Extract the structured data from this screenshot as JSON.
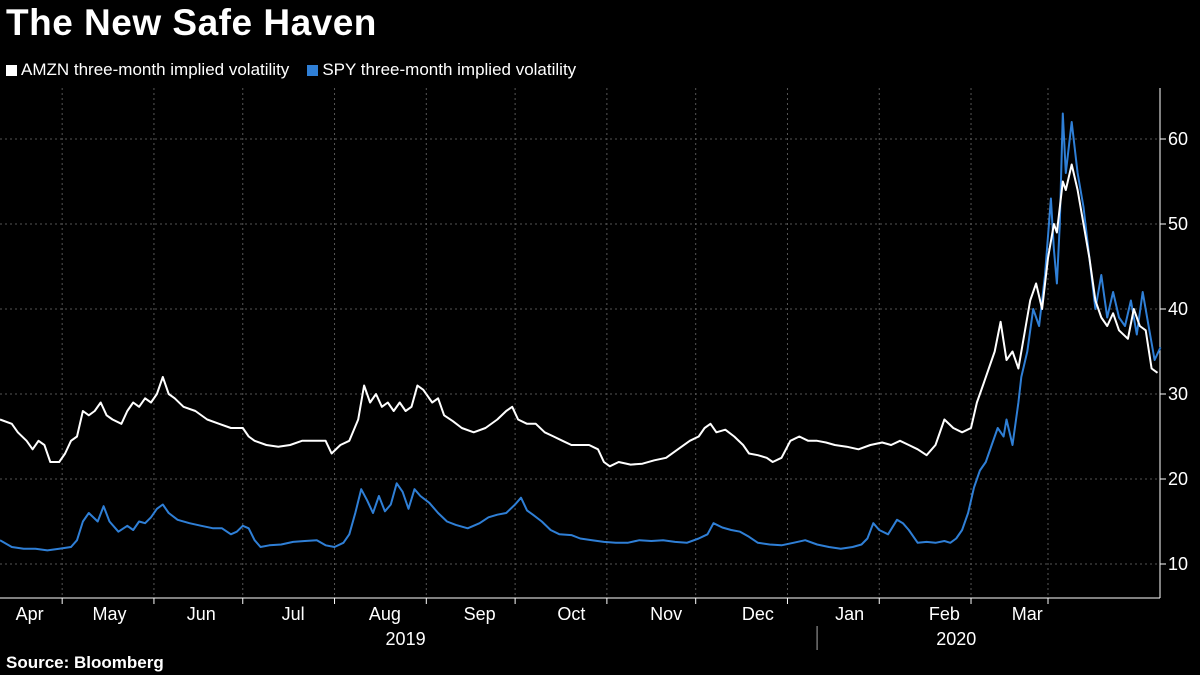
{
  "title": "The New Safe Haven",
  "source": "Source: Bloomberg",
  "colors": {
    "background": "#000000",
    "amzn": "#ffffff",
    "spy": "#2f7fd6",
    "grid": "#555555"
  },
  "chart_data": {
    "type": "line",
    "title": "The New Safe Haven",
    "xlabel": "",
    "ylabel": "",
    "ylim": [
      6,
      66
    ],
    "xlim": [
      0,
      384
    ],
    "y_ticks": [
      "10",
      "20",
      "30",
      "40",
      "50",
      "60"
    ],
    "y_tick_values": [
      10,
      20,
      30,
      40,
      50,
      60
    ],
    "month_labels": [
      "Apr",
      "May",
      "Jun",
      "Jul",
      "Aug",
      "Sep",
      "Oct",
      "Nov",
      "Dec",
      "Jan",
      "Feb",
      "Mar"
    ],
    "month_label_days": [
      10,
      37,
      68,
      99,
      130,
      162,
      193,
      225,
      256,
      287,
      319,
      347
    ],
    "month_gridline_days": [
      21,
      52,
      82,
      113,
      144,
      174,
      205,
      235,
      266,
      297,
      328,
      354
    ],
    "year_labels": [
      "2019",
      "2020"
    ],
    "year_label_days": [
      137,
      323
    ],
    "year_divider_day": 276,
    "x_unit": "days since Mar 22, 2019",
    "legend": [
      "AMZN three-month implied volatility",
      "SPY three-month implied volatility"
    ],
    "series": [
      {
        "name": "AMZN three-month implied volatility",
        "color": "#ffffff",
        "points": [
          [
            0,
            27
          ],
          [
            4,
            26.5
          ],
          [
            6,
            25.5
          ],
          [
            9,
            24.5
          ],
          [
            11,
            23.5
          ],
          [
            13,
            24.5
          ],
          [
            15,
            24
          ],
          [
            17,
            22
          ],
          [
            20,
            22
          ],
          [
            22,
            23
          ],
          [
            24,
            24.5
          ],
          [
            26,
            25
          ],
          [
            28,
            28
          ],
          [
            30,
            27.5
          ],
          [
            32,
            28
          ],
          [
            34,
            29
          ],
          [
            36,
            27.5
          ],
          [
            38,
            27
          ],
          [
            41,
            26.5
          ],
          [
            43,
            28
          ],
          [
            45,
            29
          ],
          [
            47,
            28.5
          ],
          [
            49,
            29.5
          ],
          [
            51,
            29
          ],
          [
            53,
            30
          ],
          [
            55,
            32
          ],
          [
            57,
            30
          ],
          [
            59,
            29.5
          ],
          [
            62,
            28.5
          ],
          [
            66,
            28
          ],
          [
            70,
            27
          ],
          [
            74,
            26.5
          ],
          [
            78,
            26
          ],
          [
            82,
            26
          ],
          [
            84,
            25
          ],
          [
            86,
            24.5
          ],
          [
            90,
            24
          ],
          [
            94,
            23.8
          ],
          [
            98,
            24
          ],
          [
            102,
            24.5
          ],
          [
            106,
            24.5
          ],
          [
            110,
            24.5
          ],
          [
            112,
            23
          ],
          [
            115,
            24
          ],
          [
            118,
            24.5
          ],
          [
            121,
            27
          ],
          [
            123,
            31
          ],
          [
            125,
            29
          ],
          [
            127,
            30
          ],
          [
            129,
            28.5
          ],
          [
            131,
            29
          ],
          [
            133,
            28
          ],
          [
            135,
            29
          ],
          [
            137,
            28
          ],
          [
            139,
            28.5
          ],
          [
            141,
            31
          ],
          [
            143,
            30.5
          ],
          [
            146,
            29
          ],
          [
            148,
            29.5
          ],
          [
            150,
            27.5
          ],
          [
            153,
            26.8
          ],
          [
            156,
            26
          ],
          [
            160,
            25.5
          ],
          [
            164,
            26
          ],
          [
            168,
            27
          ],
          [
            171,
            28
          ],
          [
            173,
            28.5
          ],
          [
            175,
            27
          ],
          [
            178,
            26.5
          ],
          [
            181,
            26.5
          ],
          [
            184,
            25.5
          ],
          [
            187,
            25
          ],
          [
            190,
            24.5
          ],
          [
            193,
            24
          ],
          [
            196,
            24
          ],
          [
            199,
            24
          ],
          [
            202,
            23.5
          ],
          [
            204,
            22
          ],
          [
            206,
            21.5
          ],
          [
            209,
            22
          ],
          [
            213,
            21.7
          ],
          [
            217,
            21.8
          ],
          [
            221,
            22.2
          ],
          [
            225,
            22.5
          ],
          [
            229,
            23.5
          ],
          [
            233,
            24.5
          ],
          [
            236,
            25
          ],
          [
            238,
            26
          ],
          [
            240,
            26.5
          ],
          [
            242,
            25.5
          ],
          [
            245,
            25.8
          ],
          [
            248,
            25
          ],
          [
            251,
            24
          ],
          [
            253,
            23
          ],
          [
            256,
            22.8
          ],
          [
            259,
            22.5
          ],
          [
            261,
            22
          ],
          [
            264,
            22.5
          ],
          [
            267,
            24.5
          ],
          [
            270,
            25
          ],
          [
            273,
            24.5
          ],
          [
            276,
            24.5
          ],
          [
            279,
            24.3
          ],
          [
            282,
            24
          ],
          [
            286,
            23.8
          ],
          [
            290,
            23.5
          ],
          [
            294,
            24
          ],
          [
            298,
            24.3
          ],
          [
            301,
            24
          ],
          [
            304,
            24.5
          ],
          [
            307,
            24
          ],
          [
            310,
            23.5
          ],
          [
            313,
            22.8
          ],
          [
            316,
            24
          ],
          [
            319,
            27
          ],
          [
            322,
            26
          ],
          [
            325,
            25.5
          ],
          [
            328,
            26
          ],
          [
            330,
            29
          ],
          [
            332,
            31
          ],
          [
            334,
            33
          ],
          [
            336,
            35
          ],
          [
            338,
            38.5
          ],
          [
            340,
            34
          ],
          [
            342,
            35
          ],
          [
            344,
            33
          ],
          [
            346,
            37
          ],
          [
            348,
            41
          ],
          [
            350,
            43
          ],
          [
            352,
            40
          ],
          [
            354,
            46
          ],
          [
            356,
            50
          ],
          [
            357,
            49
          ],
          [
            359,
            55
          ],
          [
            360,
            54
          ],
          [
            362,
            57
          ],
          [
            364,
            54
          ],
          [
            366,
            50
          ],
          [
            368,
            46
          ],
          [
            370,
            41
          ],
          [
            372,
            39
          ],
          [
            374,
            38
          ],
          [
            376,
            39.5
          ],
          [
            378,
            37.5
          ],
          [
            381,
            36.5
          ],
          [
            383,
            40
          ],
          [
            385,
            38
          ],
          [
            387,
            37.5
          ],
          [
            389,
            33
          ],
          [
            391,
            32.5
          ]
        ]
      },
      {
        "name": "SPY three-month implied volatility",
        "color": "#2f7fd6",
        "points": [
          [
            0,
            12.8
          ],
          [
            4,
            12
          ],
          [
            8,
            11.8
          ],
          [
            12,
            11.8
          ],
          [
            16,
            11.6
          ],
          [
            20,
            11.8
          ],
          [
            24,
            12
          ],
          [
            26,
            12.8
          ],
          [
            28,
            15
          ],
          [
            30,
            16
          ],
          [
            33,
            15
          ],
          [
            35,
            16.8
          ],
          [
            37,
            15
          ],
          [
            40,
            13.8
          ],
          [
            43,
            14.5
          ],
          [
            45,
            14
          ],
          [
            47,
            15
          ],
          [
            49,
            14.8
          ],
          [
            51,
            15.5
          ],
          [
            53,
            16.5
          ],
          [
            55,
            17
          ],
          [
            57,
            16
          ],
          [
            60,
            15.2
          ],
          [
            64,
            14.8
          ],
          [
            68,
            14.5
          ],
          [
            72,
            14.2
          ],
          [
            75,
            14.2
          ],
          [
            78,
            13.5
          ],
          [
            80,
            13.8
          ],
          [
            82,
            14.5
          ],
          [
            84,
            14.2
          ],
          [
            86,
            12.8
          ],
          [
            88,
            12
          ],
          [
            91,
            12.2
          ],
          [
            95,
            12.3
          ],
          [
            99,
            12.6
          ],
          [
            103,
            12.7
          ],
          [
            107,
            12.8
          ],
          [
            110,
            12.2
          ],
          [
            113,
            12
          ],
          [
            116,
            12.5
          ],
          [
            118,
            13.5
          ],
          [
            120,
            16
          ],
          [
            122,
            18.8
          ],
          [
            124,
            17.5
          ],
          [
            126,
            16
          ],
          [
            128,
            18
          ],
          [
            130,
            16.2
          ],
          [
            132,
            17
          ],
          [
            134,
            19.5
          ],
          [
            136,
            18.5
          ],
          [
            138,
            16.5
          ],
          [
            140,
            18.8
          ],
          [
            142,
            18
          ],
          [
            145,
            17.2
          ],
          [
            148,
            16
          ],
          [
            151,
            15
          ],
          [
            154,
            14.6
          ],
          [
            158,
            14.2
          ],
          [
            162,
            14.8
          ],
          [
            165,
            15.5
          ],
          [
            168,
            15.8
          ],
          [
            171,
            16
          ],
          [
            174,
            17
          ],
          [
            176,
            17.8
          ],
          [
            178,
            16.3
          ],
          [
            180,
            15.8
          ],
          [
            183,
            15
          ],
          [
            186,
            14
          ],
          [
            189,
            13.5
          ],
          [
            193,
            13.4
          ],
          [
            196,
            13
          ],
          [
            200,
            12.8
          ],
          [
            204,
            12.6
          ],
          [
            208,
            12.5
          ],
          [
            212,
            12.5
          ],
          [
            216,
            12.8
          ],
          [
            220,
            12.7
          ],
          [
            224,
            12.8
          ],
          [
            228,
            12.6
          ],
          [
            232,
            12.5
          ],
          [
            236,
            13
          ],
          [
            239,
            13.5
          ],
          [
            241,
            14.8
          ],
          [
            244,
            14.3
          ],
          [
            247,
            14
          ],
          [
            250,
            13.8
          ],
          [
            253,
            13.2
          ],
          [
            256,
            12.5
          ],
          [
            260,
            12.3
          ],
          [
            264,
            12.2
          ],
          [
            268,
            12.5
          ],
          [
            272,
            12.8
          ],
          [
            276,
            12.3
          ],
          [
            280,
            12
          ],
          [
            284,
            11.8
          ],
          [
            288,
            12
          ],
          [
            291,
            12.3
          ],
          [
            293,
            13
          ],
          [
            295,
            14.8
          ],
          [
            297,
            14
          ],
          [
            300,
            13.5
          ],
          [
            303,
            15.2
          ],
          [
            305,
            14.8
          ],
          [
            307,
            14
          ],
          [
            310,
            12.5
          ],
          [
            313,
            12.6
          ],
          [
            316,
            12.5
          ],
          [
            319,
            12.7
          ],
          [
            321,
            12.5
          ],
          [
            323,
            13
          ],
          [
            325,
            14
          ],
          [
            327,
            16
          ],
          [
            329,
            19
          ],
          [
            331,
            21
          ],
          [
            333,
            22
          ],
          [
            335,
            24
          ],
          [
            337,
            26
          ],
          [
            339,
            25
          ],
          [
            340,
            27
          ],
          [
            342,
            24
          ],
          [
            344,
            29
          ],
          [
            345,
            32
          ],
          [
            347,
            35
          ],
          [
            349,
            40
          ],
          [
            351,
            38
          ],
          [
            353,
            44
          ],
          [
            355,
            53
          ],
          [
            356,
            47
          ],
          [
            357,
            43
          ],
          [
            358,
            50
          ],
          [
            359,
            63
          ],
          [
            360,
            56
          ],
          [
            362,
            62
          ],
          [
            364,
            56
          ],
          [
            366,
            52
          ],
          [
            368,
            46
          ],
          [
            370,
            40
          ],
          [
            372,
            44
          ],
          [
            374,
            39
          ],
          [
            376,
            42
          ],
          [
            378,
            39
          ],
          [
            380,
            38
          ],
          [
            382,
            41
          ],
          [
            384,
            37
          ],
          [
            386,
            42
          ],
          [
            388,
            38
          ],
          [
            390,
            34
          ],
          [
            392,
            35.5
          ]
        ]
      }
    ]
  }
}
